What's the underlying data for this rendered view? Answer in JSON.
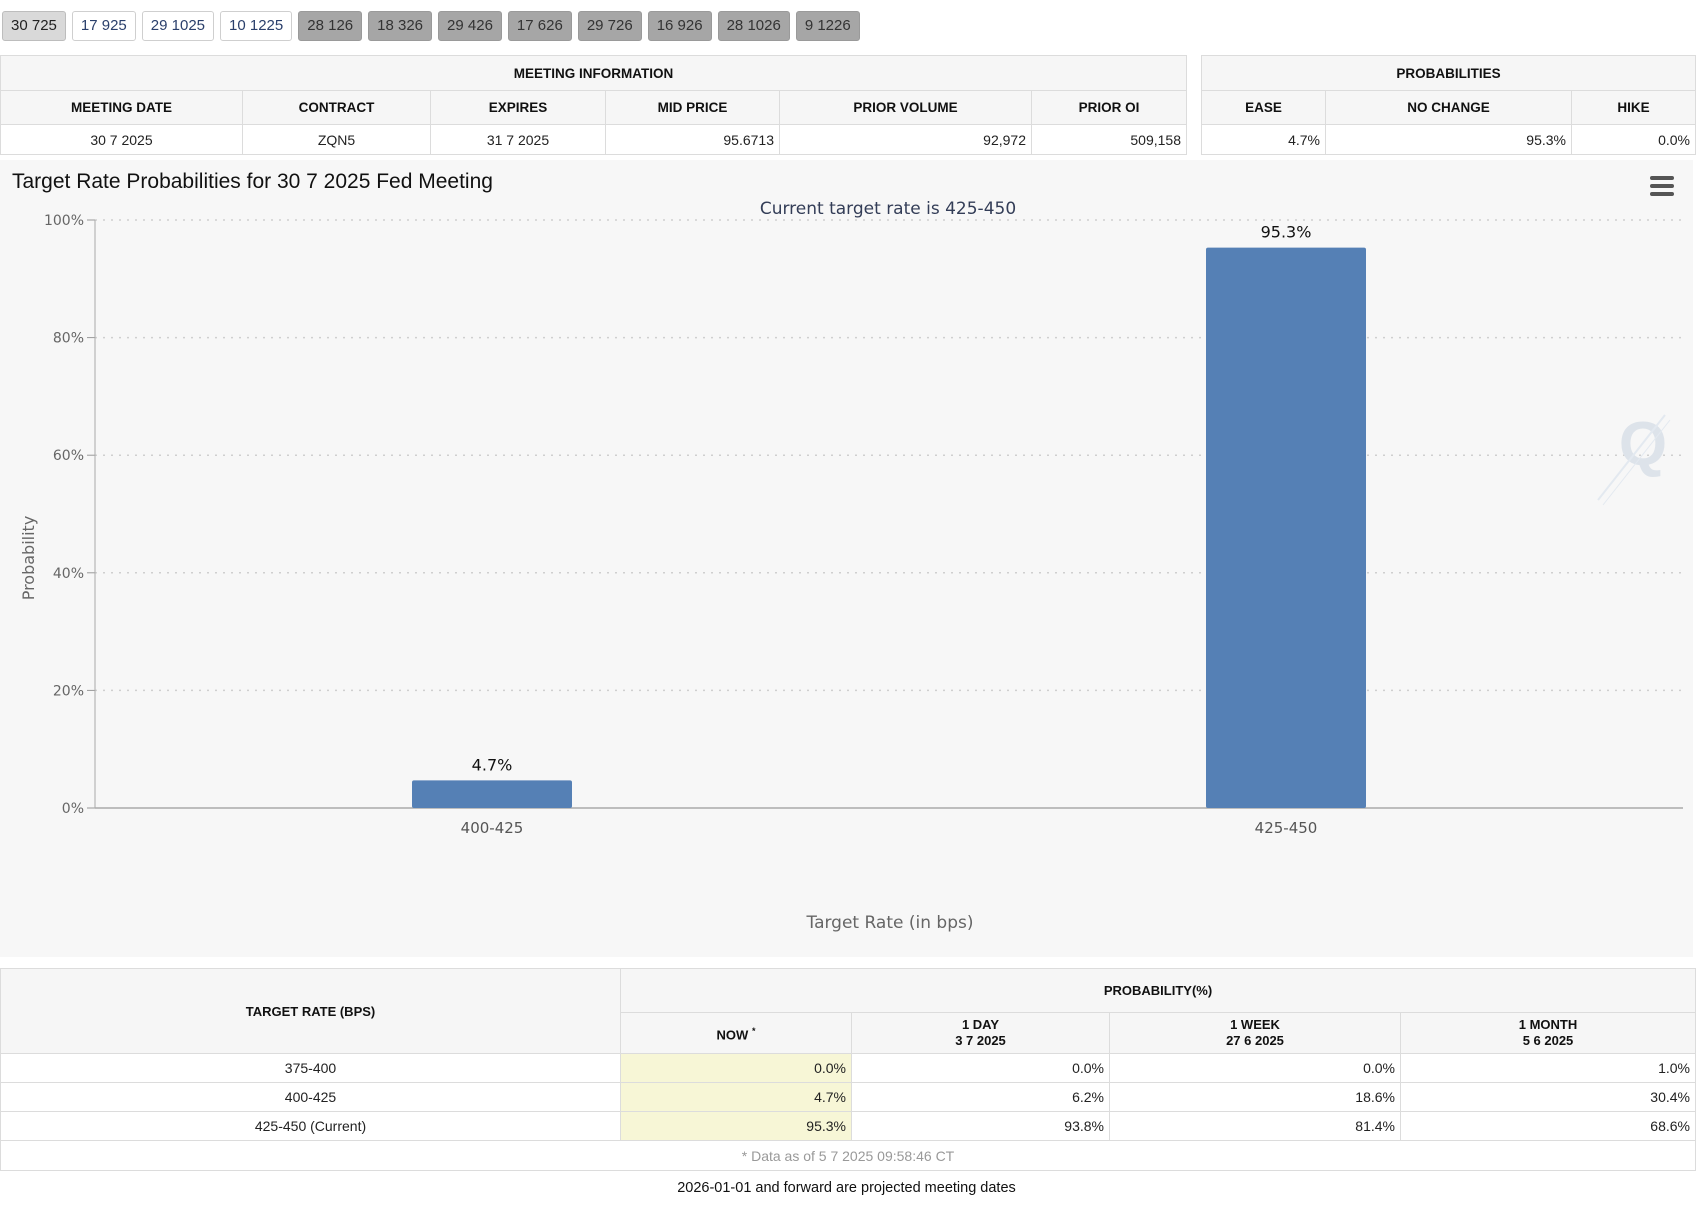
{
  "tabs": [
    {
      "label": "30 725",
      "state": "active"
    },
    {
      "label": "17 925",
      "state": "normal"
    },
    {
      "label": "29 1025",
      "state": "normal"
    },
    {
      "label": "10 1225",
      "state": "normal"
    },
    {
      "label": "28 126",
      "state": "projected"
    },
    {
      "label": "18 326",
      "state": "projected"
    },
    {
      "label": "29 426",
      "state": "projected"
    },
    {
      "label": "17 626",
      "state": "projected"
    },
    {
      "label": "29 726",
      "state": "projected"
    },
    {
      "label": "16 926",
      "state": "projected"
    },
    {
      "label": "28 1026",
      "state": "projected"
    },
    {
      "label": "9 1226",
      "state": "projected"
    }
  ],
  "meeting_info": {
    "title": "MEETING INFORMATION",
    "headers": [
      "MEETING DATE",
      "CONTRACT",
      "EXPIRES",
      "MID PRICE",
      "PRIOR VOLUME",
      "PRIOR OI"
    ],
    "row": [
      "30 7 2025",
      "ZQN5",
      "31 7 2025",
      "95.6713",
      "92,972",
      "509,158"
    ]
  },
  "probabilities": {
    "title": "PROBABILITIES",
    "headers": [
      "EASE",
      "NO CHANGE",
      "HIKE"
    ],
    "row": [
      "4.7%",
      "95.3%",
      "0.0%"
    ]
  },
  "chart_title": "Target Rate Probabilities for 30 7 2025 Fed Meeting",
  "chart_data": {
    "type": "bar",
    "title": "Target Rate Probabilities for 30 7 2025 Fed Meeting",
    "subtitle": "Current target rate is 425-450",
    "categories": [
      "400-425",
      "425-450"
    ],
    "values": [
      4.7,
      95.3
    ],
    "data_labels": [
      "4.7%",
      "95.3%"
    ],
    "xlabel": "Target Rate (in bps)",
    "ylabel": "Probability",
    "ylim": [
      0,
      100
    ],
    "yticks": [
      0,
      20,
      40,
      60,
      80,
      100
    ],
    "ytick_labels": [
      "0%",
      "20%",
      "40%",
      "60%",
      "80%",
      "100%"
    ],
    "grid": true,
    "bar_color": "#5580b5"
  },
  "rate_table": {
    "col_target": "TARGET RATE (BPS)",
    "col_prob": "PROBABILITY(%)",
    "sub_headers": [
      {
        "line1": "NOW",
        "line2": ""
      },
      {
        "line1": "1 DAY",
        "line2": "3 7 2025"
      },
      {
        "line1": "1 WEEK",
        "line2": "27 6 2025"
      },
      {
        "line1": "1 MONTH",
        "line2": "5 6 2025"
      }
    ],
    "now_marker": "*",
    "rows": [
      {
        "rate": "375-400",
        "now": "0.0%",
        "day": "0.0%",
        "week": "0.0%",
        "month": "1.0%"
      },
      {
        "rate": "400-425",
        "now": "4.7%",
        "day": "6.2%",
        "week": "18.6%",
        "month": "30.4%"
      },
      {
        "rate": "425-450 (Current)",
        "now": "95.3%",
        "day": "93.8%",
        "week": "81.4%",
        "month": "68.6%"
      }
    ],
    "footnote": "* Data as of 5 7 2025 09:58:46 CT"
  },
  "bottom_note": "2026-01-01 and forward are projected meeting dates"
}
